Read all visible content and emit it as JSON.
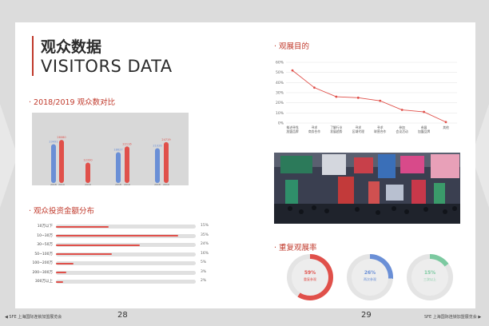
{
  "brand": {
    "accent": "#c0392b",
    "bar_red": "#e0504a",
    "bar_blue": "#6a8fd6"
  },
  "left_page": {
    "title_cn": "观众数据",
    "title_en": "VISITORS DATA",
    "page_number": "28",
    "footer": "◀ SFE 上海国际连锁加盟展览会",
    "compare_title": "· 2018/2019 观众数对比",
    "invest_title": "· 观众投资金额分布"
  },
  "right_page": {
    "purpose_title": "· 观展目的",
    "repeat_title": "· 重复观展率",
    "page_number": "29",
    "footer": "SFE 上海国际连锁加盟展览会 ▶"
  },
  "chart_data": [
    {
      "type": "bar",
      "title": "",
      "categories": [
        "2018",
        "2019",
        "2019",
        "2018",
        "2019",
        "2018",
        "2019"
      ],
      "series": [
        {
          "values": [
            23491,
            26080,
            null,
            18627,
            22116,
            21026,
            24719
          ]
        },
        {
          "values": [
            null,
            null,
            12330,
            null,
            null,
            null,
            null
          ]
        }
      ],
      "value_labels": [
        "23491",
        "26080",
        "12330",
        "18627",
        "22116",
        "21026",
        "24719"
      ],
      "bar_colors": [
        "#6a8fd6",
        "#e0504a",
        "#e0504a",
        "#6a8fd6",
        "#e0504a",
        "#6a8fd6",
        "#e0504a"
      ],
      "ylim": [
        0,
        30000
      ]
    },
    {
      "type": "bar",
      "orientation": "horizontal",
      "title": "",
      "categories": [
        "10万以下",
        "10~30万",
        "30~50万",
        "50~100万",
        "100~200万",
        "200~300万",
        "300万以上"
      ],
      "values": [
        15,
        35,
        24,
        16,
        5,
        3,
        2
      ],
      "value_labels": [
        "15%",
        "35%",
        "24%",
        "16%",
        "5%",
        "3%",
        "2%"
      ],
      "xlim": [
        0,
        40
      ]
    },
    {
      "type": "line",
      "title": "",
      "categories": [
        "推进寻找\n加盟品牌",
        "寻求\n商务合作",
        "了解行业\n发展趋势",
        "寻求\n区域代理",
        "寻求\n联营合作",
        "参加\n会议活动",
        "参展\n加盟品牌",
        "其他"
      ],
      "values": [
        52,
        35,
        26,
        25,
        22,
        13,
        11,
        1
      ],
      "yticks": [
        "60%",
        "50%",
        "40%",
        "30%",
        "20%",
        "10%",
        "0%"
      ],
      "ylim": [
        0,
        60
      ],
      "grid": true
    }
  ],
  "repeat_rates": [
    {
      "pct": "59%",
      "label": "重复参观",
      "value": 59,
      "color": "#e0504a"
    },
    {
      "pct": "26%",
      "label": "两次参观",
      "value": 26,
      "color": "#6a8fd6"
    },
    {
      "pct": "15%",
      "label": "三次以上",
      "value": 15,
      "color": "#7cc9a0"
    }
  ]
}
